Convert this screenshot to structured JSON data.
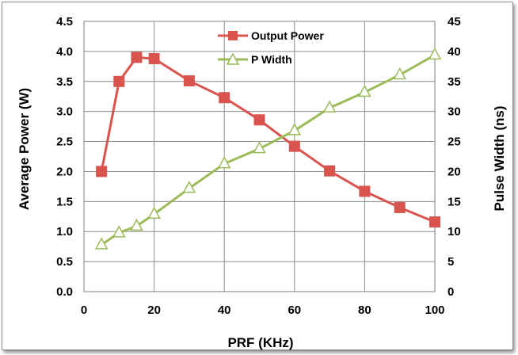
{
  "chart_data": {
    "type": "line",
    "title": "",
    "xlabel": "PRF (KHz)",
    "ylabel_left": "Average Power (W)",
    "ylabel_right": "Pulse Width (ns)",
    "xlim": [
      0,
      100
    ],
    "ylim_left": [
      0.0,
      4.5
    ],
    "ylim_right": [
      0,
      45
    ],
    "x_ticks": [
      "0",
      "20",
      "40",
      "60",
      "80",
      "100"
    ],
    "y_ticks_left": [
      "0.0",
      "0.5",
      "1.0",
      "1.5",
      "2.0",
      "2.5",
      "3.0",
      "3.5",
      "4.0",
      "4.5"
    ],
    "y_ticks_right": [
      "0",
      "5",
      "10",
      "15",
      "20",
      "25",
      "30",
      "35",
      "40",
      "45"
    ],
    "grid": true,
    "legend_position": "top-center",
    "series": [
      {
        "name": "Output Power",
        "axis": "left",
        "color": "#d9534f",
        "marker": "square",
        "x": [
          5,
          10,
          15,
          20,
          30,
          40,
          50,
          60,
          70,
          80,
          90,
          100
        ],
        "y": [
          2.0,
          3.5,
          3.9,
          3.88,
          3.51,
          3.23,
          2.86,
          2.42,
          2.01,
          1.67,
          1.4,
          1.16
        ]
      },
      {
        "name": "P Width",
        "axis": "right",
        "color": "#9bbb59",
        "marker": "triangle",
        "x": [
          5,
          10,
          15,
          20,
          30,
          40,
          50,
          60,
          70,
          80,
          90,
          100
        ],
        "y": [
          7.8,
          9.8,
          10.9,
          12.9,
          17.2,
          21.3,
          23.8,
          26.8,
          30.6,
          33.2,
          36.1,
          39.4
        ]
      }
    ]
  }
}
